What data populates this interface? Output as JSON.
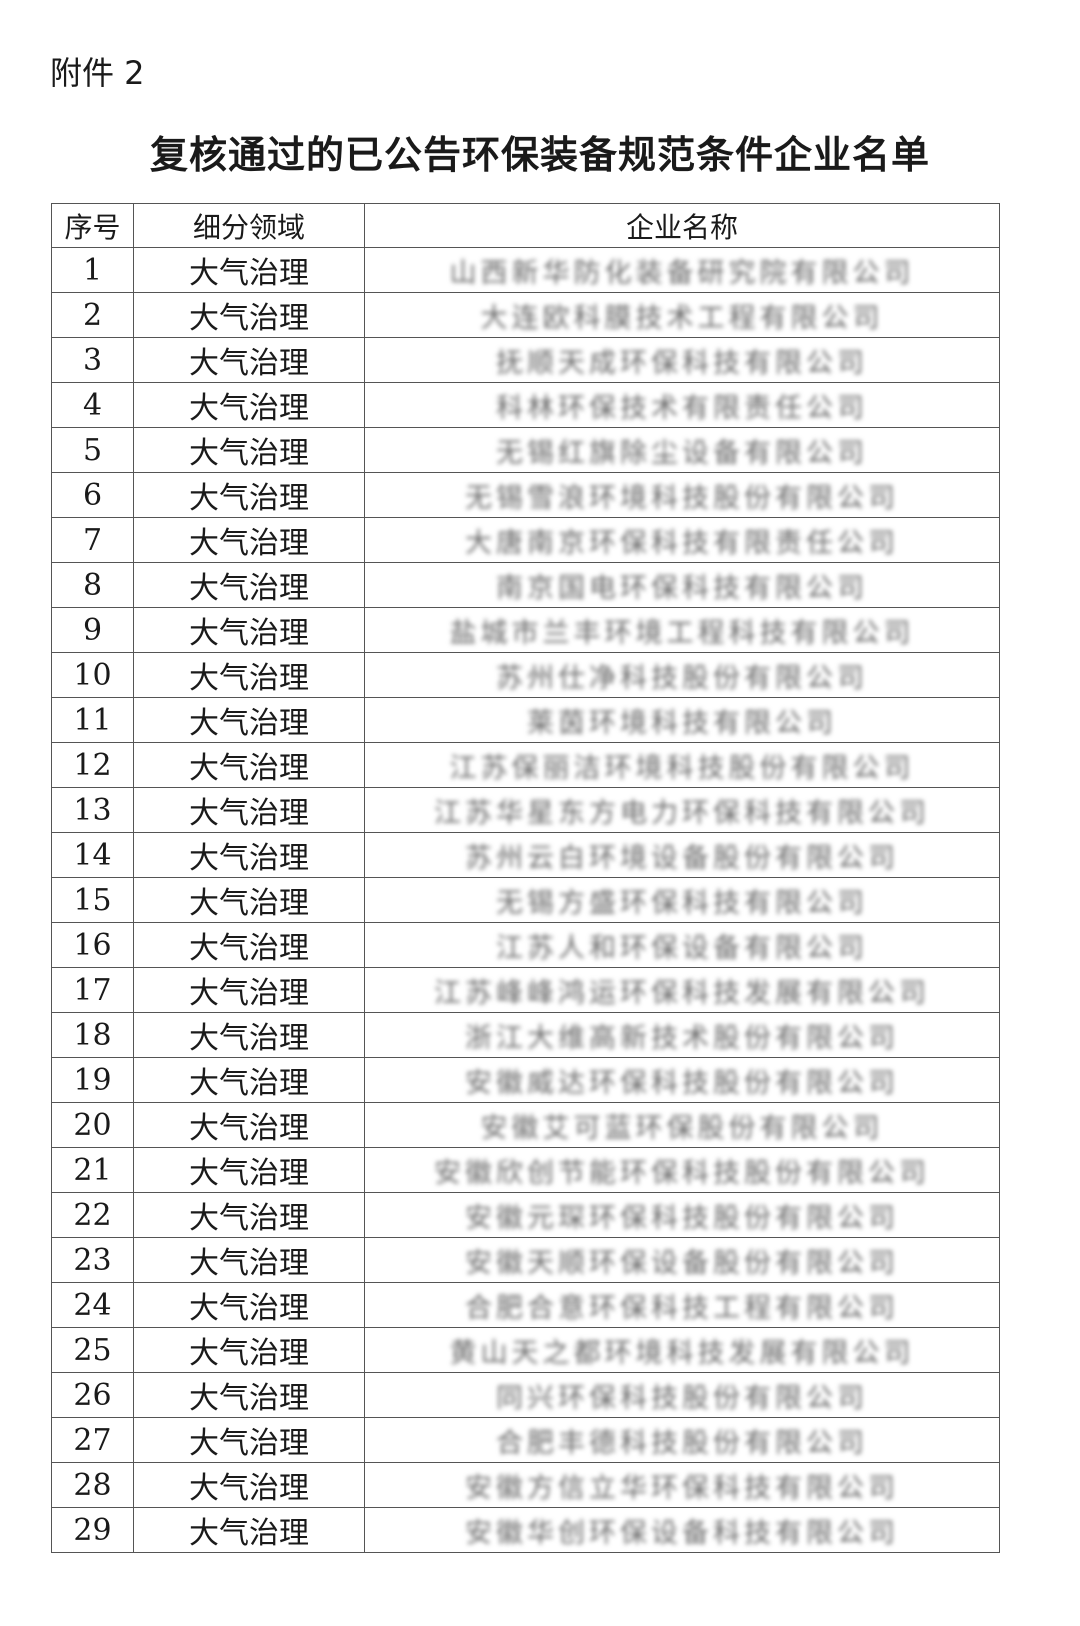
{
  "attachment_label": "附件 2",
  "title": "复核通过的已公告环保装备规范条件企业名单",
  "table": {
    "headers": [
      "序号",
      "细分领域",
      "企业名称"
    ],
    "rows": [
      [
        "1",
        "大气治理",
        "山西新华防化装备研究院有限公司"
      ],
      [
        "2",
        "大气治理",
        "大连欧科膜技术工程有限公司"
      ],
      [
        "3",
        "大气治理",
        "抚顺天成环保科技有限公司"
      ],
      [
        "4",
        "大气治理",
        "科林环保技术有限责任公司"
      ],
      [
        "5",
        "大气治理",
        "无锡红旗除尘设备有限公司"
      ],
      [
        "6",
        "大气治理",
        "无锡雪浪环境科技股份有限公司"
      ],
      [
        "7",
        "大气治理",
        "大唐南京环保科技有限责任公司"
      ],
      [
        "8",
        "大气治理",
        "南京国电环保科技有限公司"
      ],
      [
        "9",
        "大气治理",
        "盐城市兰丰环境工程科技有限公司"
      ],
      [
        "10",
        "大气治理",
        "苏州仕净科技股份有限公司"
      ],
      [
        "11",
        "大气治理",
        "莱茵环境科技有限公司"
      ],
      [
        "12",
        "大气治理",
        "江苏保丽洁环境科技股份有限公司"
      ],
      [
        "13",
        "大气治理",
        "江苏华星东方电力环保科技有限公司"
      ],
      [
        "14",
        "大气治理",
        "苏州云白环境设备股份有限公司"
      ],
      [
        "15",
        "大气治理",
        "无锡方盛环保科技有限公司"
      ],
      [
        "16",
        "大气治理",
        "江苏人和环保设备有限公司"
      ],
      [
        "17",
        "大气治理",
        "江苏峰峰鸿运环保科技发展有限公司"
      ],
      [
        "18",
        "大气治理",
        "浙江大维高新技术股份有限公司"
      ],
      [
        "19",
        "大气治理",
        "安徽威达环保科技股份有限公司"
      ],
      [
        "20",
        "大气治理",
        "安徽艾可蓝环保股份有限公司"
      ],
      [
        "21",
        "大气治理",
        "安徽欣创节能环保科技股份有限公司"
      ],
      [
        "22",
        "大气治理",
        "安徽元琛环保科技股份有限公司"
      ],
      [
        "23",
        "大气治理",
        "安徽天顺环保设备股份有限公司"
      ],
      [
        "24",
        "大气治理",
        "合肥合意环保科技工程有限公司"
      ],
      [
        "25",
        "大气治理",
        "黄山天之都环境科技发展有限公司"
      ],
      [
        "26",
        "大气治理",
        "同兴环保科技股份有限公司"
      ],
      [
        "27",
        "大气治理",
        "合肥丰德科技股份有限公司"
      ],
      [
        "28",
        "大气治理",
        "安徽方信立华环保科技有限公司"
      ],
      [
        "29",
        "大气治理",
        "安徽华创环保设备科技有限公司"
      ]
    ]
  }
}
